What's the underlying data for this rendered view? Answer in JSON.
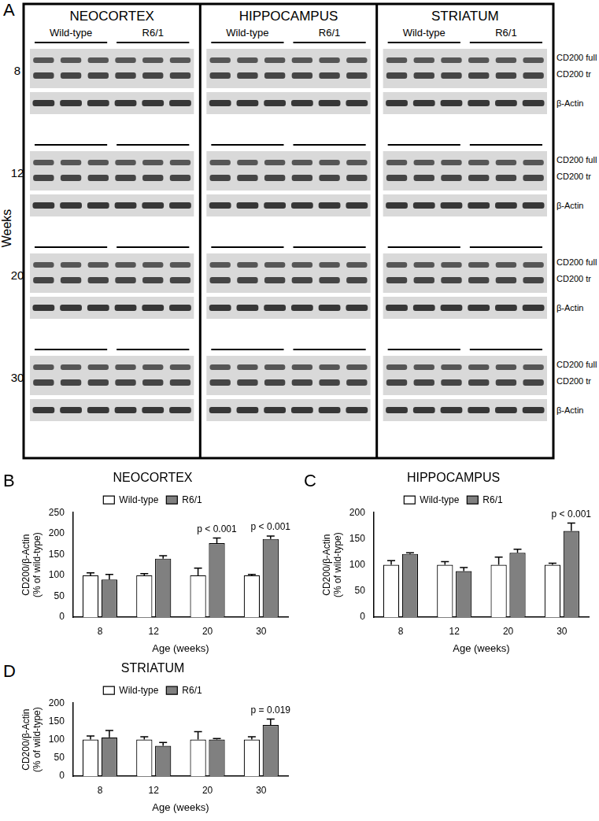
{
  "blots": {
    "panel": "A",
    "y_label": "Weeks",
    "ages": [
      "8",
      "12",
      "20",
      "30"
    ],
    "regions": [
      "NEOCORTEX",
      "HIPPOCAMPUS",
      "STRIATUM"
    ],
    "groups": [
      "Wild-type",
      "R6/1"
    ],
    "bands": [
      "CD200 full",
      "CD200 tr",
      "β-Actin"
    ]
  },
  "chart_data": [
    {
      "panel": "B",
      "type": "bar",
      "title": "NEOCORTEX",
      "x_label": "Age (weeks)",
      "y_label": [
        "CD200/β-Actin",
        "(% of wild-type)"
      ],
      "categories": [
        "8",
        "12",
        "20",
        "30"
      ],
      "series": [
        {
          "name": "Wild-type",
          "color": "#ffffff",
          "values": [
            100,
            100,
            100,
            100
          ],
          "errors": [
            6,
            4,
            17,
            2
          ]
        },
        {
          "name": "R6/1",
          "color": "#808080",
          "values": [
            90,
            140,
            177,
            187
          ],
          "errors": [
            12,
            7,
            12,
            7
          ]
        }
      ],
      "ylim": [
        0,
        250
      ],
      "yticks": [
        0,
        50,
        100,
        150,
        200,
        250
      ],
      "grid": false,
      "legend": "top",
      "annotations": [
        {
          "text": "p < 0.001",
          "category": "20",
          "series": "R6/1"
        },
        {
          "text": "p < 0.001",
          "category": "30",
          "series": "R6/1"
        }
      ]
    },
    {
      "panel": "C",
      "type": "bar",
      "title": "HIPPOCAMPUS",
      "x_label": "Age (weeks)",
      "y_label": [
        "CD200/β-Actin",
        "(% of wild-type)"
      ],
      "categories": [
        "8",
        "12",
        "20",
        "30"
      ],
      "series": [
        {
          "name": "Wild-type",
          "color": "#ffffff",
          "values": [
            100,
            100,
            100,
            100
          ],
          "errors": [
            8,
            6,
            15,
            3
          ]
        },
        {
          "name": "R6/1",
          "color": "#808080",
          "values": [
            121,
            88,
            123,
            165
          ],
          "errors": [
            2,
            7,
            7,
            15
          ]
        }
      ],
      "ylim": [
        0,
        200
      ],
      "yticks": [
        0,
        50,
        100,
        150,
        200
      ],
      "grid": false,
      "legend": "top",
      "annotations": [
        {
          "text": "p < 0.001",
          "category": "30",
          "series": "R6/1"
        }
      ]
    },
    {
      "panel": "D",
      "type": "bar",
      "title": "STRIATUM",
      "x_label": "Age (weeks)",
      "y_label": [
        "CD200/β-Actin",
        "(% of wild-type)"
      ],
      "categories": [
        "8",
        "12",
        "20",
        "30"
      ],
      "series": [
        {
          "name": "Wild-type",
          "color": "#ffffff",
          "values": [
            100,
            100,
            100,
            100
          ],
          "errors": [
            10,
            8,
            22,
            8
          ]
        },
        {
          "name": "R6/1",
          "color": "#808080",
          "values": [
            106,
            83,
            100,
            140
          ],
          "errors": [
            19,
            9,
            3,
            16
          ]
        }
      ],
      "ylim": [
        0,
        200
      ],
      "yticks": [
        0,
        50,
        100,
        150,
        200
      ],
      "grid": false,
      "legend": "top",
      "annotations": [
        {
          "text": "p = 0.019",
          "category": "30",
          "series": "R6/1"
        }
      ]
    }
  ]
}
